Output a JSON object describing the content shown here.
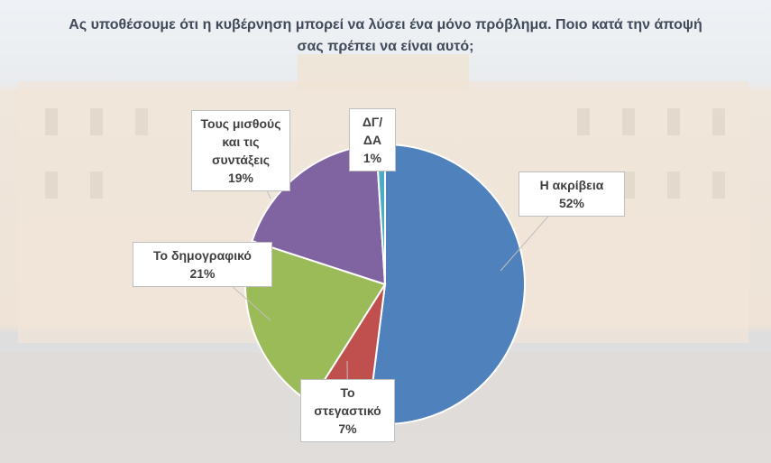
{
  "chart_data": {
    "type": "pie",
    "title": "Ας υποθέσουμε ότι η κυβέρνηση μπορεί να λύσει ένα μόνο πρόβλημα. Ποιο κατά την άποψή σας πρέπει να είναι αυτό;",
    "categories": [
      "Η ακρίβεια",
      "Το στεγαστικό",
      "Το δημογραφικό",
      "Τους μισθούς και τις συντάξεις",
      "ΔΓ/ΔΑ"
    ],
    "values": [
      52,
      7,
      21,
      19,
      1
    ],
    "value_labels": [
      "52%",
      "7%",
      "21%",
      "19%",
      "1%"
    ],
    "colors": [
      "#4f81bd",
      "#c0504d",
      "#9bbb59",
      "#8064a2",
      "#4bacc6"
    ]
  }
}
